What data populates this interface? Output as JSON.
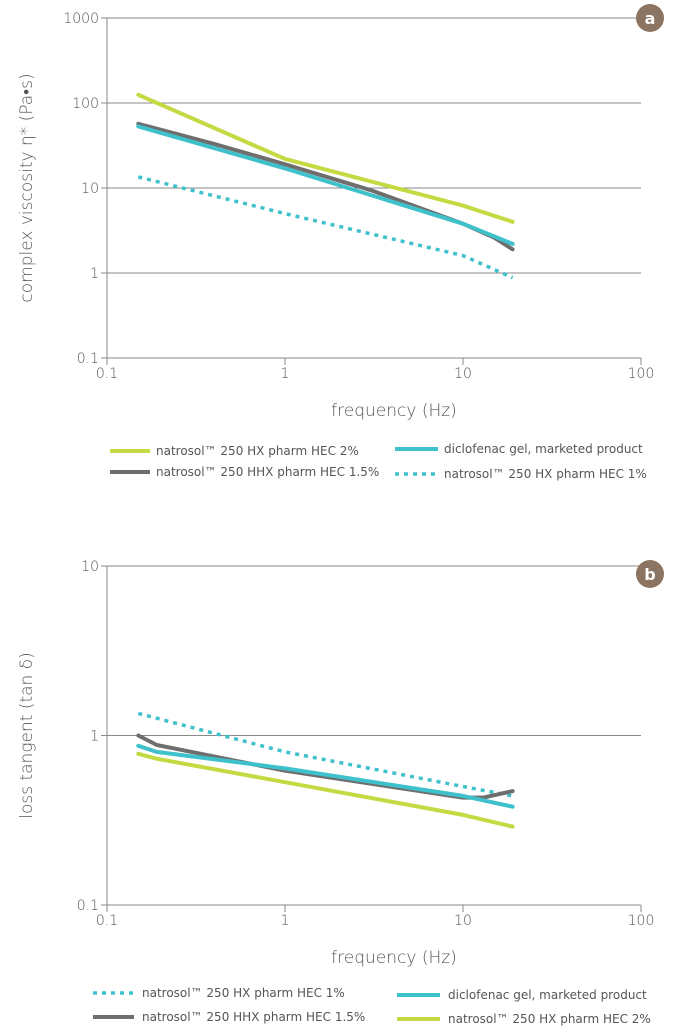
{
  "chart_data": [
    {
      "panel": "a",
      "type": "line",
      "xlabel": "frequency (Hz)",
      "ylabel": "complex viscosity η* (Pa•s)",
      "xscale": "log",
      "yscale": "log",
      "xlim": [
        0.1,
        100
      ],
      "ylim": [
        0.1,
        1000
      ],
      "xticks": [
        "0.1",
        "1",
        "10",
        "100"
      ],
      "yticks": [
        "0.1",
        "1",
        "10",
        "100",
        "1000"
      ],
      "grid": "horizontal",
      "legend_placement": "bottom",
      "series": [
        {
          "name": "natrosol™ 250 HX pharm HEC 2%",
          "color": "#c5d943",
          "style": "solid",
          "x": [
            0.15,
            1,
            10,
            19
          ],
          "y": [
            125,
            22,
            6.2,
            4
          ]
        },
        {
          "name": "natrosol™ 250 HHX pharm HEC 1.5%",
          "color": "#6e6e6e",
          "style": "solid",
          "x": [
            0.15,
            0.4,
            1,
            3,
            10,
            15,
            19
          ],
          "y": [
            57,
            33,
            19,
            9.5,
            3.8,
            2.6,
            1.9
          ]
        },
        {
          "name": "diclofenac gel, marketed product",
          "color": "#3fc1cb",
          "style": "solid",
          "x": [
            0.15,
            1,
            10,
            19
          ],
          "y": [
            53,
            17,
            3.8,
            2.2
          ]
        },
        {
          "name": "natrosol™ 250 HX pharm HEC 1%",
          "color": "#3fc1cb",
          "style": "dotted",
          "x": [
            0.15,
            1,
            10,
            19
          ],
          "y": [
            13.5,
            5.0,
            1.6,
            0.88
          ]
        }
      ],
      "legend_order": [
        0,
        2,
        1,
        3
      ]
    },
    {
      "panel": "b",
      "type": "line",
      "xlabel": "frequency (Hz)",
      "ylabel": "loss tangent (tan δ)",
      "xscale": "log",
      "yscale": "log",
      "xlim": [
        0.1,
        100
      ],
      "ylim": [
        0.1,
        10
      ],
      "xticks": [
        "0.1",
        "1",
        "10",
        "100"
      ],
      "yticks": [
        "0.1",
        "1",
        "10"
      ],
      "grid": "horizontal",
      "legend_placement": "bottom",
      "series": [
        {
          "name": "natrosol™ 250 HX pharm HEC 1%",
          "color": "#3fc1cb",
          "style": "dotted",
          "x": [
            0.15,
            1,
            10,
            19
          ],
          "y": [
            1.35,
            0.8,
            0.5,
            0.44
          ]
        },
        {
          "name": "natrosol™ 250 HHX pharm HEC 1.5%",
          "color": "#6e6e6e",
          "style": "solid",
          "x": [
            0.15,
            0.19,
            1,
            10,
            13,
            19
          ],
          "y": [
            1.0,
            0.88,
            0.62,
            0.43,
            0.43,
            0.47
          ]
        },
        {
          "name": "diclofenac gel, marketed product",
          "color": "#3fc1cb",
          "style": "solid",
          "x": [
            0.15,
            0.19,
            1,
            10,
            19
          ],
          "y": [
            0.87,
            0.8,
            0.64,
            0.44,
            0.38
          ]
        },
        {
          "name": "natrosol™ 250 HX pharm HEC 2%",
          "color": "#c5d943",
          "style": "solid",
          "x": [
            0.15,
            0.19,
            1,
            10,
            19
          ],
          "y": [
            0.78,
            0.73,
            0.53,
            0.34,
            0.29
          ]
        }
      ],
      "legend_order": [
        0,
        2,
        1,
        3
      ]
    }
  ],
  "panel_badge_color": "#8b7462"
}
